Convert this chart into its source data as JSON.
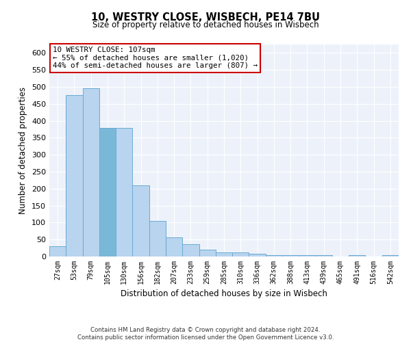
{
  "title": "10, WESTRY CLOSE, WISBECH, PE14 7BU",
  "subtitle": "Size of property relative to detached houses in Wisbech",
  "xlabel": "Distribution of detached houses by size in Wisbech",
  "ylabel": "Number of detached properties",
  "categories": [
    "27sqm",
    "53sqm",
    "79sqm",
    "105sqm",
    "130sqm",
    "156sqm",
    "182sqm",
    "207sqm",
    "233sqm",
    "259sqm",
    "285sqm",
    "310sqm",
    "336sqm",
    "362sqm",
    "388sqm",
    "413sqm",
    "439sqm",
    "465sqm",
    "491sqm",
    "516sqm",
    "542sqm"
  ],
  "values": [
    30,
    475,
    495,
    380,
    380,
    210,
    105,
    57,
    37,
    20,
    13,
    12,
    9,
    4,
    4,
    4,
    5,
    1,
    5,
    0,
    5
  ],
  "bar_color": "#b8d4ee",
  "bar_edge_color": "#6aaad4",
  "highlight_bar_index": 3,
  "highlight_bar_color": "#7ab8d8",
  "annotation_text": "10 WESTRY CLOSE: 107sqm\n← 55% of detached houses are smaller (1,020)\n44% of semi-detached houses are larger (807) →",
  "annotation_box_color": "#ffffff",
  "annotation_box_edge": "#cc0000",
  "ylim": [
    0,
    625
  ],
  "yticks": [
    0,
    50,
    100,
    150,
    200,
    250,
    300,
    350,
    400,
    450,
    500,
    550,
    600
  ],
  "bg_color": "#edf2fa",
  "footer_line1": "Contains HM Land Registry data © Crown copyright and database right 2024.",
  "footer_line2": "Contains public sector information licensed under the Open Government Licence v3.0."
}
